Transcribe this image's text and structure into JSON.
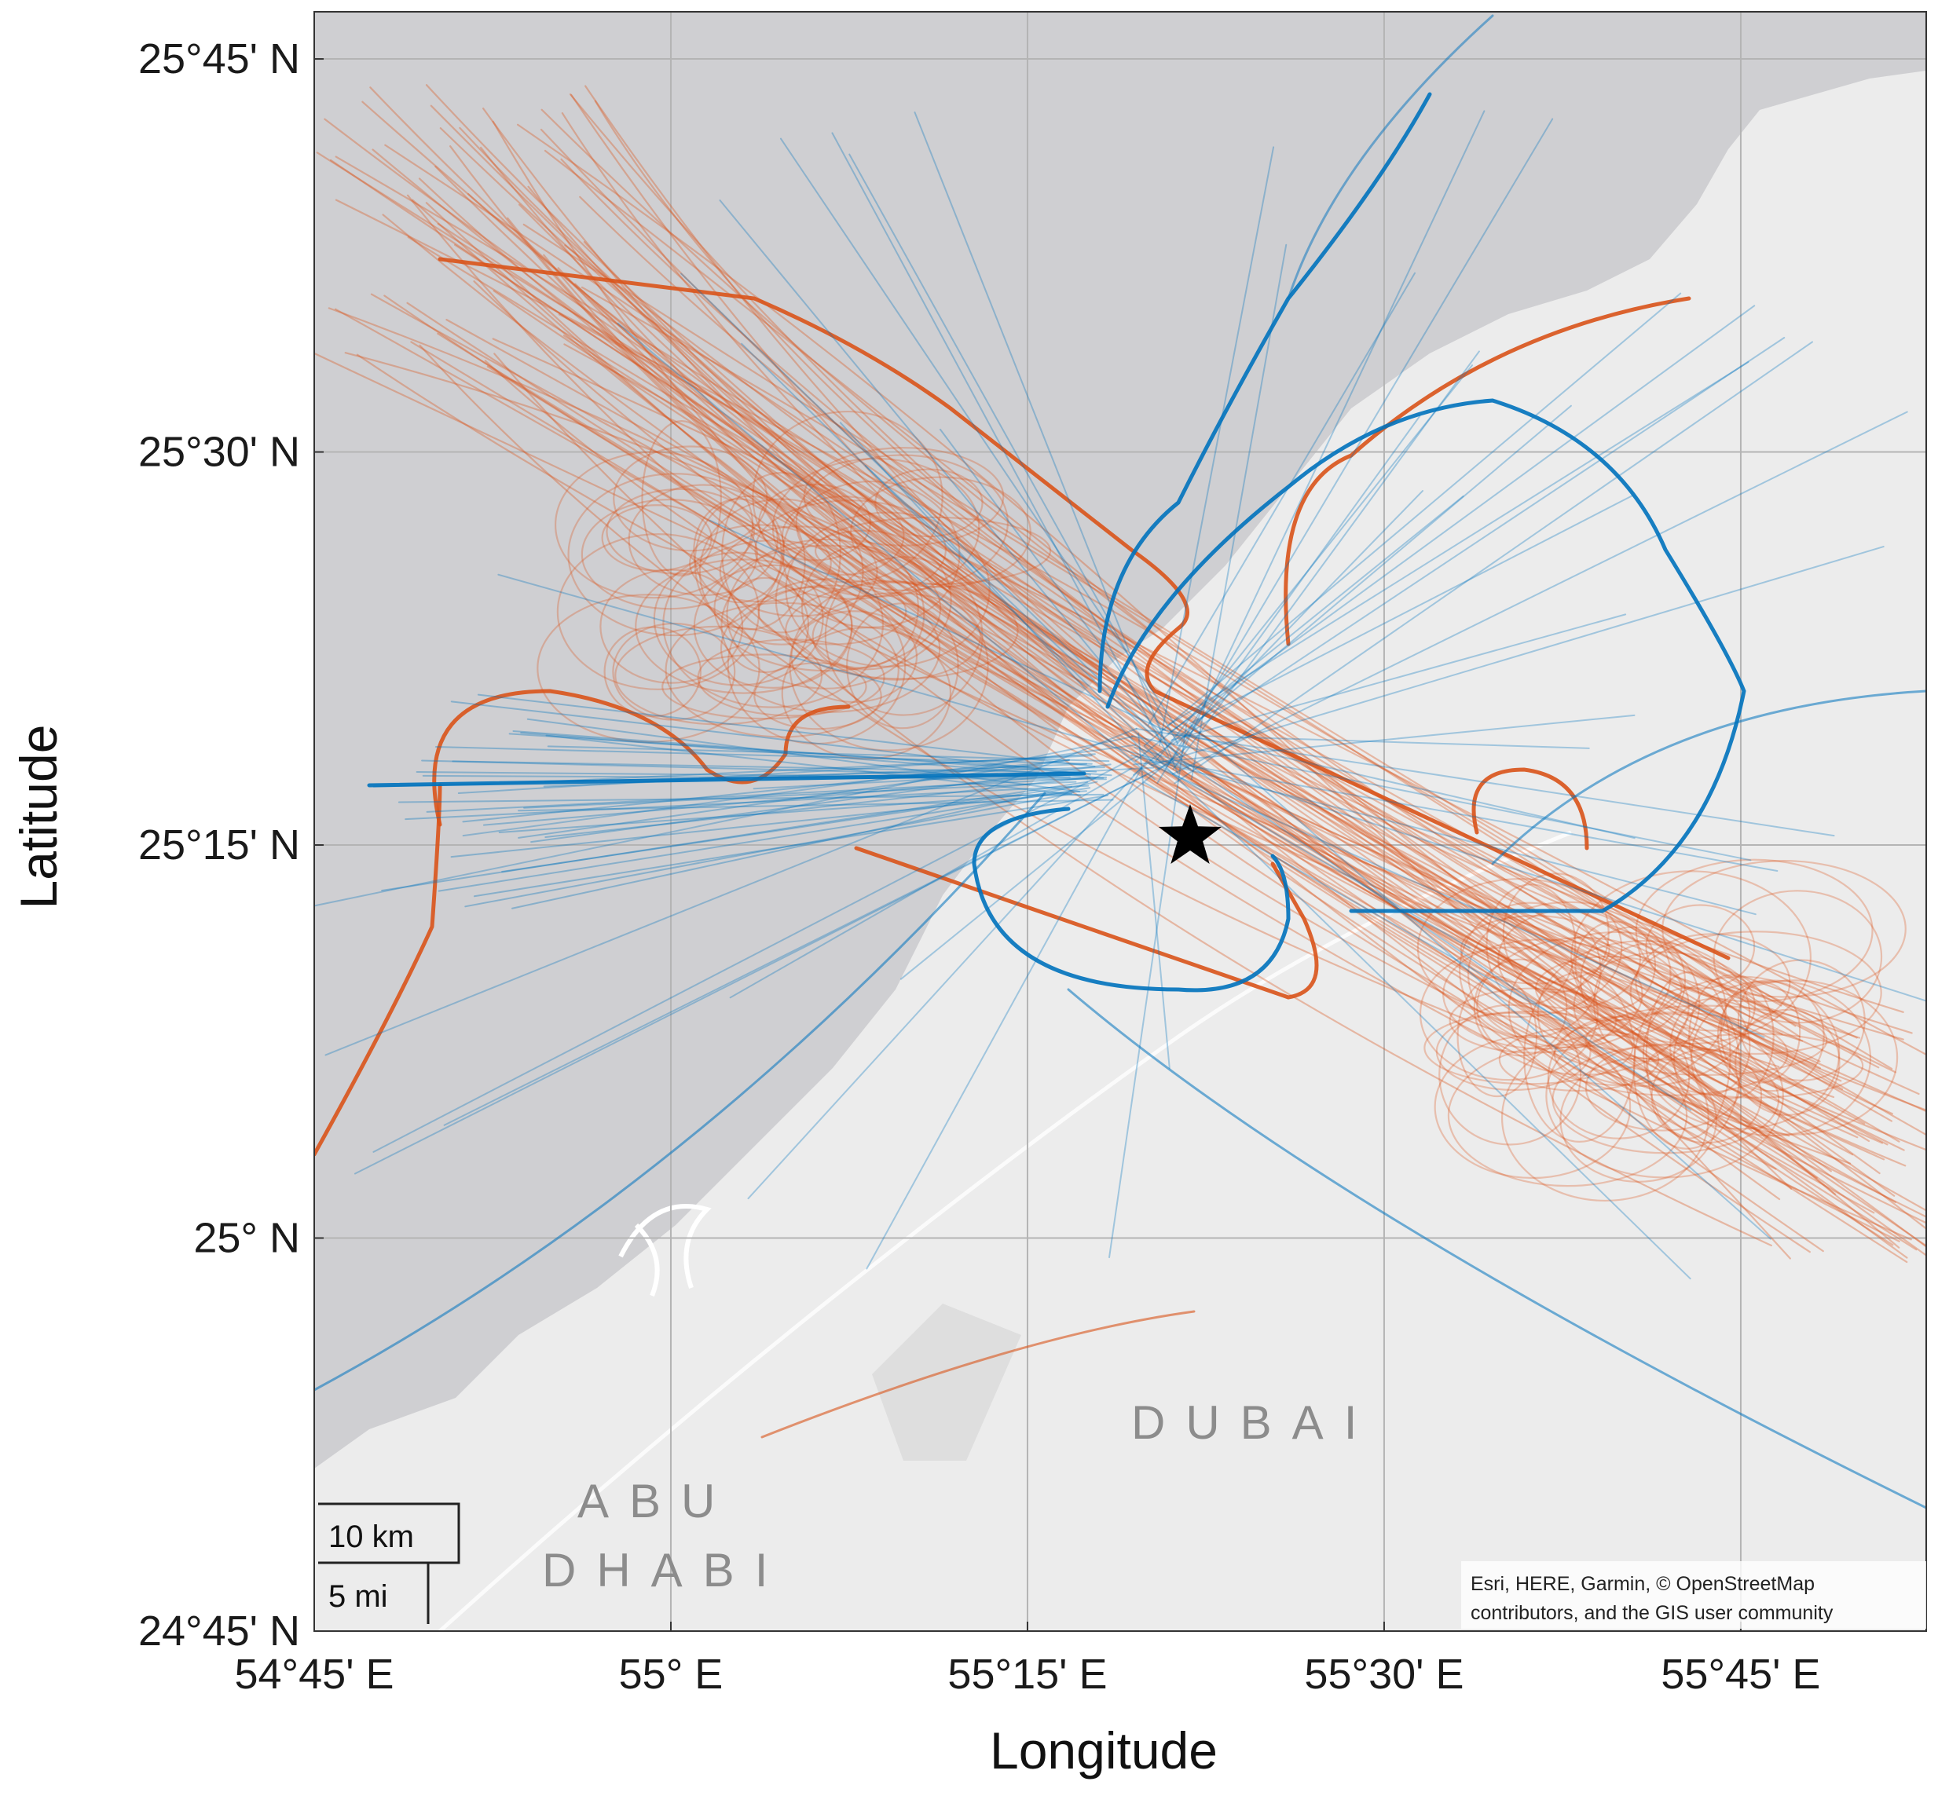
{
  "chart_data": {
    "type": "map",
    "xlabel": "Longitude",
    "ylabel": "Latitude",
    "x_ticks": [
      "54°45' E",
      "55° E",
      "55°15' E",
      "55°30'  E",
      "55°45' E"
    ],
    "y_ticks": [
      "25°45' N",
      "25°30' N",
      "25°15' N",
      "25° N",
      "24°45' N"
    ],
    "xlim": [
      54.75,
      55.88
    ],
    "ylim": [
      24.75,
      25.78
    ],
    "grid": true,
    "region_labels": [
      {
        "text": "DUBAI",
        "lon": 55.39,
        "lat": 24.89
      },
      {
        "text": "ABU",
        "lon": 54.97,
        "lat": 24.82
      },
      {
        "text": "DHABI",
        "lon": 54.97,
        "lat": 24.79
      }
    ],
    "scale_bar": {
      "km_label": "10 km",
      "mi_label": "5 mi"
    },
    "attribution": {
      "line1": "Esri, HERE, Garmin, © OpenStreetMap",
      "line2": "contributors, and the GIS user community"
    },
    "airport_marker": {
      "symbol": "star",
      "lon": 55.364,
      "lat": 25.255
    },
    "series": [
      {
        "color": "#d95319"
      },
      {
        "color": "#0072bd"
      }
    ]
  },
  "colors": {
    "sea": "#cfcfd2",
    "land": "#ececec",
    "grid": "#b4b4b4",
    "orange": "#d95319",
    "blue": "#0072bd"
  }
}
